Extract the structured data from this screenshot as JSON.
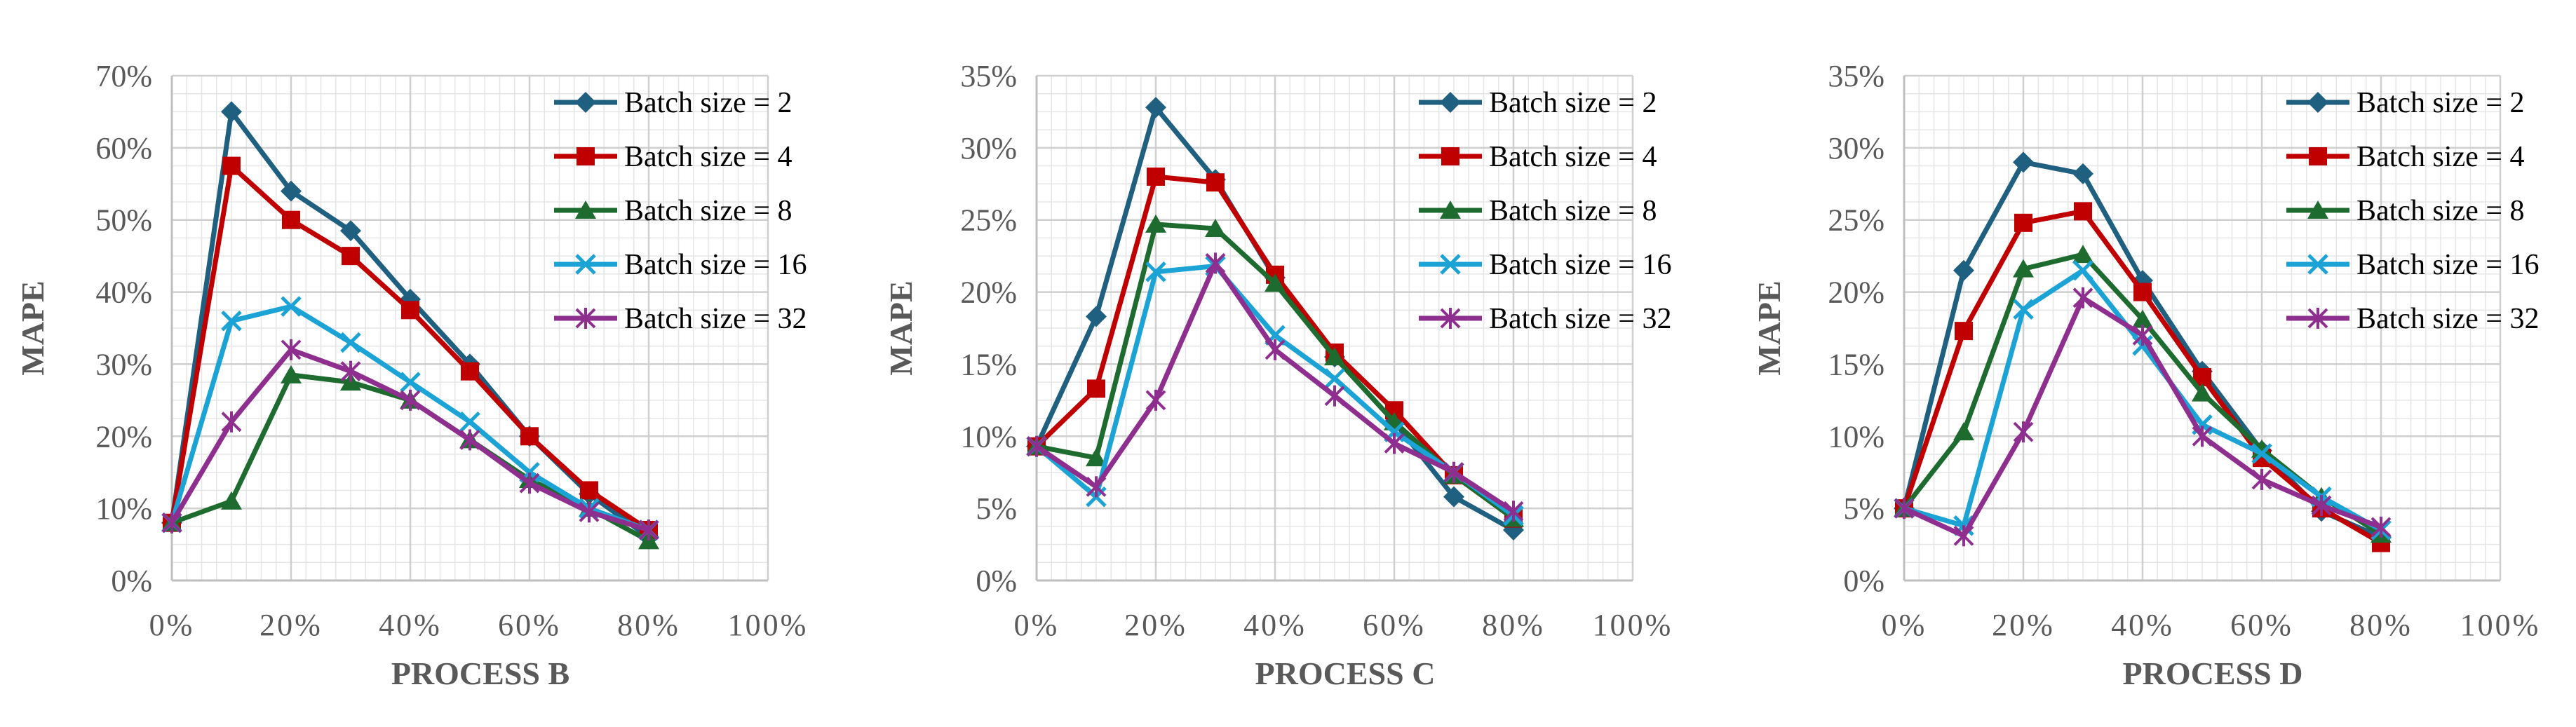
{
  "chart_data": [
    {
      "type": "line",
      "title": "",
      "xlabel": "PROCESS B",
      "ylabel": "MAPE",
      "xlim": [
        0,
        100
      ],
      "ylim": [
        0,
        70
      ],
      "x_ticks": [
        "0%",
        "20%",
        "40%",
        "60%",
        "80%",
        "100%"
      ],
      "y_ticks": [
        "0%",
        "10%",
        "20%",
        "30%",
        "40%",
        "50%",
        "60%",
        "70%"
      ],
      "grid": true,
      "legend_position": "top-right",
      "x": [
        0,
        10,
        20,
        30,
        40,
        50,
        60,
        70,
        80
      ],
      "series": [
        {
          "name": "Batch size = 2",
          "color": "#1f5f7f",
          "marker": "diamond",
          "values": [
            8,
            65,
            54,
            48.5,
            39,
            30,
            20,
            12,
            6
          ]
        },
        {
          "name": "Batch size = 4",
          "color": "#c00000",
          "marker": "square",
          "values": [
            8,
            57.5,
            50,
            45,
            37.5,
            29,
            20,
            12.5,
            7
          ]
        },
        {
          "name": "Batch size = 8",
          "color": "#1e6b30",
          "marker": "triangle",
          "values": [
            8,
            11,
            28.5,
            27.5,
            25,
            19.5,
            14,
            10,
            5.5
          ]
        },
        {
          "name": "Batch size = 16",
          "color": "#1ba3d6",
          "marker": "x",
          "values": [
            8,
            36,
            38,
            33,
            27.5,
            22,
            15,
            10,
            7
          ]
        },
        {
          "name": "Batch size = 32",
          "color": "#8e2e8e",
          "marker": "star",
          "values": [
            8,
            22,
            32,
            29,
            25,
            19.5,
            13.5,
            9.5,
            7
          ]
        }
      ]
    },
    {
      "type": "line",
      "title": "",
      "xlabel": "PROCESS C",
      "ylabel": "MAPE",
      "xlim": [
        0,
        100
      ],
      "ylim": [
        0,
        35
      ],
      "x_ticks": [
        "0%",
        "20%",
        "40%",
        "60%",
        "80%",
        "100%"
      ],
      "y_ticks": [
        "0%",
        "5%",
        "10%",
        "15%",
        "20%",
        "25%",
        "30%",
        "35%"
      ],
      "grid": true,
      "legend_position": "top-right",
      "x": [
        0,
        10,
        20,
        30,
        40,
        50,
        60,
        70,
        80
      ],
      "series": [
        {
          "name": "Batch size = 2",
          "color": "#1f5f7f",
          "marker": "diamond",
          "values": [
            9.3,
            18.3,
            32.8,
            27.8,
            21,
            15.5,
            11,
            5.8,
            3.5
          ]
        },
        {
          "name": "Batch size = 4",
          "color": "#c00000",
          "marker": "square",
          "values": [
            9.3,
            13.3,
            28,
            27.6,
            21.2,
            15.8,
            11.8,
            7.3,
            4.3
          ]
        },
        {
          "name": "Batch size = 8",
          "color": "#1e6b30",
          "marker": "triangle",
          "values": [
            9.3,
            8.5,
            24.7,
            24.4,
            20.6,
            15.5,
            11,
            7.3,
            4.3
          ]
        },
        {
          "name": "Batch size = 16",
          "color": "#1ba3d6",
          "marker": "x",
          "values": [
            9.3,
            5.8,
            21.4,
            21.8,
            17,
            14,
            10.3,
            7.5,
            4.5
          ]
        },
        {
          "name": "Batch size = 32",
          "color": "#8e2e8e",
          "marker": "star",
          "values": [
            9.3,
            6.5,
            12.5,
            22,
            16,
            12.8,
            9.5,
            7.5,
            4.8
          ]
        }
      ]
    },
    {
      "type": "line",
      "title": "",
      "xlabel": "PROCESS D",
      "ylabel": "MAPE",
      "xlim": [
        0,
        100
      ],
      "ylim": [
        0,
        35
      ],
      "x_ticks": [
        "0%",
        "20%",
        "40%",
        "60%",
        "80%",
        "100%"
      ],
      "y_ticks": [
        "0%",
        "5%",
        "10%",
        "15%",
        "20%",
        "25%",
        "30%",
        "35%"
      ],
      "grid": true,
      "legend_position": "top-right",
      "x": [
        0,
        10,
        20,
        30,
        40,
        50,
        60,
        70,
        80
      ],
      "series": [
        {
          "name": "Batch size = 2",
          "color": "#1f5f7f",
          "marker": "diamond",
          "values": [
            5,
            21.5,
            29,
            28.2,
            20.8,
            14.5,
            9,
            4.8,
            3
          ]
        },
        {
          "name": "Batch size = 4",
          "color": "#c00000",
          "marker": "square",
          "values": [
            5,
            17.3,
            24.8,
            25.6,
            20,
            14.1,
            8.5,
            5,
            2.6
          ]
        },
        {
          "name": "Batch size = 8",
          "color": "#1e6b30",
          "marker": "triangle",
          "values": [
            5,
            10.3,
            21.6,
            22.6,
            18.1,
            13,
            9.1,
            5.8,
            3.2
          ]
        },
        {
          "name": "Batch size = 16",
          "color": "#1ba3d6",
          "marker": "x",
          "values": [
            5,
            3.8,
            18.8,
            21.5,
            16.3,
            10.8,
            8.8,
            5.8,
            3.5
          ]
        },
        {
          "name": "Batch size = 32",
          "color": "#8e2e8e",
          "marker": "star",
          "values": [
            5,
            3.1,
            10.3,
            19.6,
            17,
            10,
            7,
            5.2,
            3.7
          ]
        }
      ]
    }
  ]
}
